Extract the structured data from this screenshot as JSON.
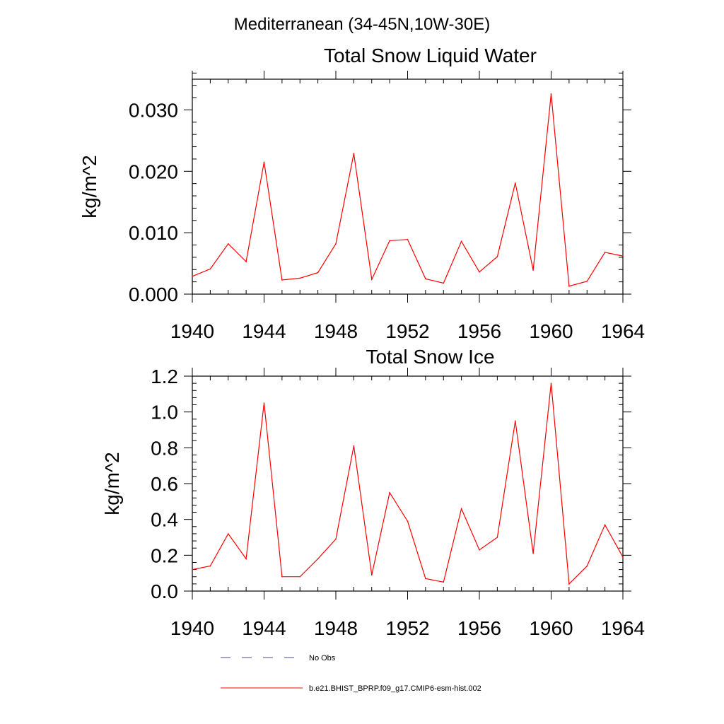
{
  "suptitle": "Mediterranean (34-45N,10W-30E)",
  "legend": {
    "entries": [
      {
        "label": "No Obs",
        "color": "#4a4a8c",
        "style": "dashed"
      },
      {
        "label": "b.e21.BHIST_BPRP.f09_g17.CMIP6-esm-hist.002",
        "color": "#ff0000",
        "style": "solid"
      }
    ]
  },
  "chart_data": [
    {
      "type": "line",
      "title": "Total Snow Liquid Water",
      "xlabel": "",
      "ylabel": "kg/m^2",
      "xlim": [
        1940,
        1964
      ],
      "ylim": [
        0,
        0.035
      ],
      "xticks": [
        "1940",
        "1944",
        "1948",
        "1952",
        "1956",
        "1960",
        "1964"
      ],
      "xtick_values": [
        1940,
        1944,
        1948,
        1952,
        1956,
        1960,
        1964
      ],
      "yticks": [
        "0.000",
        "0.010",
        "0.020",
        "0.030"
      ],
      "ytick_values": [
        0,
        0.01,
        0.02,
        0.03
      ],
      "grid": false,
      "x": [
        1940,
        1941,
        1942,
        1943,
        1944,
        1945,
        1946,
        1947,
        1948,
        1949,
        1950,
        1951,
        1952,
        1953,
        1954,
        1955,
        1956,
        1957,
        1958,
        1959,
        1960,
        1961,
        1962,
        1963,
        1964
      ],
      "series": [
        {
          "color": "#ff0000",
          "values": [
            0.0029,
            0.0041,
            0.0082,
            0.0053,
            0.0215,
            0.0023,
            0.0026,
            0.0035,
            0.0082,
            0.0229,
            0.0024,
            0.0087,
            0.0089,
            0.0025,
            0.0018,
            0.0086,
            0.0036,
            0.0061,
            0.0181,
            0.0039,
            0.0326,
            0.0013,
            0.0021,
            0.0068,
            0.0062
          ]
        }
      ]
    },
    {
      "type": "line",
      "title": "Total Snow Ice",
      "xlabel": "",
      "ylabel": "kg/m^2",
      "xlim": [
        1940,
        1964
      ],
      "ylim": [
        0,
        1.2
      ],
      "xticks": [
        "1940",
        "1944",
        "1948",
        "1952",
        "1956",
        "1960",
        "1964"
      ],
      "xtick_values": [
        1940,
        1944,
        1948,
        1952,
        1956,
        1960,
        1964
      ],
      "yticks": [
        "0.0",
        "0.2",
        "0.4",
        "0.6",
        "0.8",
        "1.0",
        "1.2"
      ],
      "ytick_values": [
        0,
        0.2,
        0.4,
        0.6,
        0.8,
        1.0,
        1.2
      ],
      "grid": false,
      "x": [
        1940,
        1941,
        1942,
        1943,
        1944,
        1945,
        1946,
        1947,
        1948,
        1949,
        1950,
        1951,
        1952,
        1953,
        1954,
        1955,
        1956,
        1957,
        1958,
        1959,
        1960,
        1961,
        1962,
        1963,
        1964
      ],
      "series": [
        {
          "color": "#ff0000",
          "values": [
            0.12,
            0.14,
            0.32,
            0.18,
            1.05,
            0.08,
            0.08,
            0.18,
            0.29,
            0.81,
            0.09,
            0.55,
            0.39,
            0.07,
            0.05,
            0.46,
            0.23,
            0.3,
            0.95,
            0.21,
            1.16,
            0.04,
            0.14,
            0.37,
            0.19
          ]
        }
      ]
    }
  ]
}
